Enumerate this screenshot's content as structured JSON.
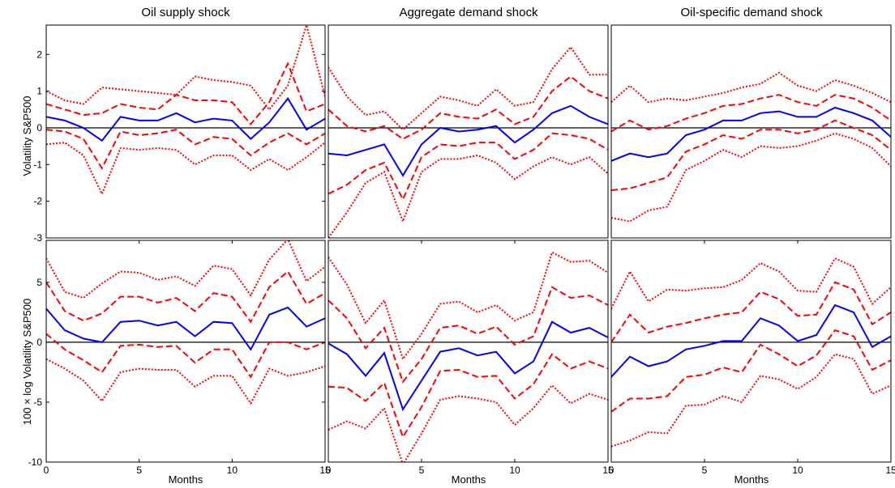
{
  "chart_data": [
    {
      "type": "line",
      "panel": "top-left",
      "title": "Oil supply shock",
      "xlabel": "",
      "ylabel": "Volatility S&P500",
      "xlim": [
        0,
        15
      ],
      "ylim": [
        -3,
        2.8
      ],
      "yticks": [
        -3,
        -2,
        -1,
        0,
        1,
        2
      ],
      "xticks": [],
      "x": [
        0,
        1,
        2,
        3,
        4,
        5,
        6,
        7,
        8,
        9,
        10,
        11,
        12,
        13,
        14,
        15
      ],
      "series": [
        {
          "style": "dotted-upper",
          "values": [
            1.0,
            0.75,
            0.65,
            1.1,
            1.05,
            1.0,
            0.95,
            0.9,
            1.4,
            1.3,
            1.25,
            1.15,
            0.5,
            1.15,
            2.8,
            0.85
          ]
        },
        {
          "style": "dashed-upper",
          "values": [
            0.65,
            0.5,
            0.35,
            0.4,
            0.65,
            0.55,
            0.5,
            0.9,
            0.75,
            0.75,
            0.7,
            0.1,
            0.7,
            1.75,
            0.45,
            0.65
          ]
        },
        {
          "style": "solid",
          "values": [
            0.3,
            0.2,
            0.0,
            -0.35,
            0.3,
            0.2,
            0.2,
            0.4,
            0.15,
            0.25,
            0.2,
            -0.3,
            0.15,
            0.8,
            -0.05,
            0.25
          ]
        },
        {
          "style": "dashed-lower",
          "values": [
            -0.05,
            -0.1,
            -0.3,
            -1.1,
            -0.1,
            -0.2,
            -0.15,
            -0.05,
            -0.45,
            -0.25,
            -0.3,
            -0.75,
            -0.4,
            -0.15,
            -0.45,
            -0.15
          ]
        },
        {
          "style": "dotted-lower",
          "values": [
            -0.45,
            -0.4,
            -0.75,
            -1.8,
            -0.55,
            -0.6,
            -0.55,
            -0.6,
            -1.0,
            -0.75,
            -0.75,
            -1.15,
            -0.85,
            -1.15,
            -0.8,
            -0.4
          ]
        }
      ]
    },
    {
      "type": "line",
      "panel": "top-middle",
      "title": "Aggregate demand shock",
      "xlabel": "",
      "ylabel": "",
      "xlim": [
        0,
        15
      ],
      "ylim": [
        -3,
        2.8
      ],
      "yticks": [],
      "xticks": [],
      "x": [
        0,
        1,
        2,
        3,
        4,
        5,
        6,
        7,
        8,
        9,
        10,
        11,
        12,
        13,
        14,
        15
      ],
      "series": [
        {
          "style": "dotted-upper",
          "values": [
            1.65,
            0.85,
            0.35,
            0.45,
            -0.05,
            0.4,
            0.85,
            0.75,
            0.6,
            1.05,
            0.6,
            0.7,
            1.6,
            2.2,
            1.45,
            1.45
          ]
        },
        {
          "style": "dashed-upper",
          "values": [
            0.5,
            0.05,
            -0.1,
            0.05,
            -0.3,
            -0.05,
            0.4,
            0.3,
            0.25,
            0.5,
            0.1,
            0.3,
            1.0,
            1.4,
            1.0,
            0.8
          ]
        },
        {
          "style": "solid",
          "values": [
            -0.7,
            -0.75,
            -0.6,
            -0.45,
            -1.3,
            -0.45,
            0.0,
            -0.1,
            -0.05,
            0.05,
            -0.4,
            -0.05,
            0.4,
            0.6,
            0.3,
            0.1
          ]
        },
        {
          "style": "dashed-lower",
          "values": [
            -1.8,
            -1.55,
            -1.15,
            -0.95,
            -1.95,
            -0.8,
            -0.45,
            -0.5,
            -0.4,
            -0.4,
            -0.85,
            -0.6,
            -0.15,
            -0.2,
            -0.3,
            -0.6
          ]
        },
        {
          "style": "dotted-lower",
          "values": [
            -3.0,
            -2.3,
            -1.5,
            -1.2,
            -2.55,
            -1.2,
            -0.85,
            -0.85,
            -0.75,
            -0.95,
            -1.4,
            -1.05,
            -0.8,
            -1.0,
            -0.8,
            -1.25
          ]
        }
      ]
    },
    {
      "type": "line",
      "panel": "top-right",
      "title": "Oil-specific demand shock",
      "xlabel": "",
      "ylabel": "",
      "xlim": [
        0,
        15
      ],
      "ylim": [
        -3,
        2.8
      ],
      "yticks": [],
      "xticks": [],
      "x": [
        0,
        1,
        2,
        3,
        4,
        5,
        6,
        7,
        8,
        9,
        10,
        11,
        12,
        13,
        14,
        15
      ],
      "series": [
        {
          "style": "dotted-upper",
          "values": [
            0.7,
            1.15,
            0.7,
            0.8,
            0.75,
            0.85,
            0.95,
            1.1,
            1.2,
            1.5,
            1.15,
            1.0,
            1.3,
            1.15,
            0.95,
            0.7
          ]
        },
        {
          "style": "dashed-upper",
          "values": [
            -0.1,
            0.2,
            -0.05,
            0.05,
            0.25,
            0.4,
            0.6,
            0.65,
            0.8,
            0.9,
            0.7,
            0.6,
            0.9,
            0.8,
            0.55,
            0.2
          ]
        },
        {
          "style": "solid",
          "values": [
            -0.9,
            -0.7,
            -0.8,
            -0.7,
            -0.2,
            -0.05,
            0.2,
            0.2,
            0.4,
            0.45,
            0.3,
            0.3,
            0.55,
            0.4,
            0.2,
            -0.25
          ]
        },
        {
          "style": "dashed-lower",
          "values": [
            -1.7,
            -1.65,
            -1.5,
            -1.35,
            -0.65,
            -0.45,
            -0.2,
            -0.3,
            -0.05,
            -0.05,
            -0.15,
            -0.05,
            0.2,
            0.0,
            -0.2,
            -0.6
          ]
        },
        {
          "style": "dotted-lower",
          "values": [
            -2.45,
            -2.55,
            -2.25,
            -2.15,
            -1.15,
            -0.9,
            -0.6,
            -0.8,
            -0.5,
            -0.55,
            -0.5,
            -0.35,
            -0.15,
            -0.3,
            -0.55,
            -1.05
          ]
        }
      ]
    },
    {
      "type": "line",
      "panel": "bottom-left",
      "title": "",
      "xlabel": "Months",
      "ylabel": "100 × log Volatility S&P500",
      "xlim": [
        0,
        15
      ],
      "ylim": [
        -10,
        8.5
      ],
      "yticks": [
        -10,
        -5,
        0,
        5
      ],
      "xticks": [
        0,
        5,
        10,
        15
      ],
      "x": [
        0,
        1,
        2,
        3,
        4,
        5,
        6,
        7,
        8,
        9,
        10,
        11,
        12,
        13,
        14,
        15
      ],
      "series": [
        {
          "style": "dotted-upper",
          "values": [
            7.0,
            4.2,
            3.7,
            4.9,
            5.9,
            5.8,
            5.2,
            5.5,
            4.7,
            6.4,
            6.1,
            3.9,
            6.9,
            8.6,
            5.1,
            6.3
          ]
        },
        {
          "style": "dashed-upper",
          "values": [
            5.0,
            2.6,
            1.8,
            2.4,
            3.8,
            3.8,
            3.3,
            3.7,
            2.6,
            4.1,
            3.8,
            1.7,
            4.6,
            5.9,
            3.2,
            4.1
          ]
        },
        {
          "style": "solid",
          "values": [
            2.8,
            1.0,
            0.3,
            0.0,
            1.7,
            1.8,
            1.4,
            1.7,
            0.5,
            1.7,
            1.6,
            -0.6,
            2.3,
            2.9,
            1.3,
            2.0
          ]
        },
        {
          "style": "dashed-lower",
          "values": [
            0.7,
            -0.6,
            -1.5,
            -2.5,
            -0.3,
            -0.2,
            -0.4,
            -0.3,
            -1.7,
            -0.6,
            -0.6,
            -2.9,
            0.0,
            0.0,
            -0.6,
            0.0
          ]
        },
        {
          "style": "dotted-lower",
          "values": [
            -1.4,
            -2.2,
            -3.2,
            -4.9,
            -2.5,
            -2.2,
            -2.3,
            -2.3,
            -3.7,
            -2.8,
            -2.8,
            -5.1,
            -2.2,
            -2.8,
            -2.5,
            -2.0
          ]
        }
      ]
    },
    {
      "type": "line",
      "panel": "bottom-middle",
      "title": "",
      "xlabel": "Months",
      "ylabel": "",
      "xlim": [
        0,
        15
      ],
      "ylim": [
        -10,
        8.5
      ],
      "yticks": [],
      "xticks": [
        0,
        5,
        10,
        15
      ],
      "x": [
        0,
        1,
        2,
        3,
        4,
        5,
        6,
        7,
        8,
        9,
        10,
        11,
        12,
        13,
        14,
        15
      ],
      "series": [
        {
          "style": "dotted-upper",
          "values": [
            7.1,
            4.8,
            1.6,
            3.5,
            -1.4,
            0.7,
            3.2,
            3.4,
            2.5,
            3.1,
            1.8,
            2.5,
            7.5,
            6.7,
            6.8,
            5.8
          ]
        },
        {
          "style": "dashed-upper",
          "values": [
            3.5,
            2.0,
            -0.5,
            1.2,
            -3.3,
            -1.4,
            1.2,
            1.4,
            0.7,
            1.3,
            -0.2,
            0.5,
            4.6,
            3.7,
            3.9,
            3.1
          ]
        },
        {
          "style": "solid",
          "values": [
            -0.1,
            -1.0,
            -2.8,
            -0.9,
            -5.6,
            -3.2,
            -0.8,
            -0.5,
            -1.1,
            -0.8,
            -2.6,
            -1.6,
            1.7,
            0.8,
            1.2,
            0.4
          ]
        },
        {
          "style": "dashed-lower",
          "values": [
            -3.7,
            -3.8,
            -4.9,
            -3.4,
            -7.9,
            -5.4,
            -2.4,
            -2.3,
            -2.9,
            -2.8,
            -4.7,
            -3.5,
            -1.0,
            -2.2,
            -1.6,
            -2.2
          ]
        },
        {
          "style": "dotted-lower",
          "values": [
            -7.3,
            -6.6,
            -7.2,
            -5.5,
            -10.2,
            -7.6,
            -4.8,
            -4.5,
            -4.7,
            -5.0,
            -6.9,
            -5.5,
            -3.6,
            -5.1,
            -4.3,
            -4.8
          ]
        }
      ]
    },
    {
      "type": "line",
      "panel": "bottom-right",
      "title": "",
      "xlabel": "Months",
      "ylabel": "",
      "xlim": [
        0,
        15
      ],
      "ylim": [
        -10,
        8.5
      ],
      "yticks": [],
      "xticks": [
        0,
        5,
        10,
        15
      ],
      "x": [
        0,
        1,
        2,
        3,
        4,
        5,
        6,
        7,
        8,
        9,
        10,
        11,
        12,
        13,
        14,
        15
      ],
      "series": [
        {
          "style": "dotted-upper",
          "values": [
            2.8,
            5.9,
            3.4,
            4.4,
            4.3,
            4.5,
            4.6,
            5.2,
            6.6,
            5.9,
            4.3,
            4.2,
            7.0,
            6.3,
            3.2,
            4.6
          ]
        },
        {
          "style": "dashed-upper",
          "values": [
            0.0,
            2.3,
            0.8,
            1.3,
            1.6,
            2.0,
            2.3,
            2.5,
            4.2,
            3.6,
            2.2,
            2.3,
            5.0,
            4.4,
            1.5,
            2.5
          ]
        },
        {
          "style": "solid",
          "values": [
            -2.9,
            -1.2,
            -2.0,
            -1.6,
            -0.6,
            -0.3,
            0.1,
            0.1,
            2.0,
            1.4,
            0.1,
            0.6,
            3.1,
            2.5,
            -0.4,
            0.5
          ]
        },
        {
          "style": "dashed-lower",
          "values": [
            -5.8,
            -4.7,
            -4.7,
            -4.5,
            -2.9,
            -2.7,
            -2.1,
            -2.5,
            -0.2,
            -1.0,
            -2.0,
            -1.1,
            1.0,
            0.5,
            -2.3,
            -1.5
          ]
        },
        {
          "style": "dotted-lower",
          "values": [
            -8.7,
            -8.2,
            -7.5,
            -7.6,
            -5.3,
            -5.2,
            -4.5,
            -5.0,
            -2.8,
            -3.1,
            -3.9,
            -2.9,
            -1.0,
            -1.4,
            -4.3,
            -3.6
          ]
        }
      ]
    }
  ],
  "colors": {
    "irf": "#0000ff",
    "band": "#ff0000",
    "zero": "#000000",
    "axis": "#000000"
  }
}
